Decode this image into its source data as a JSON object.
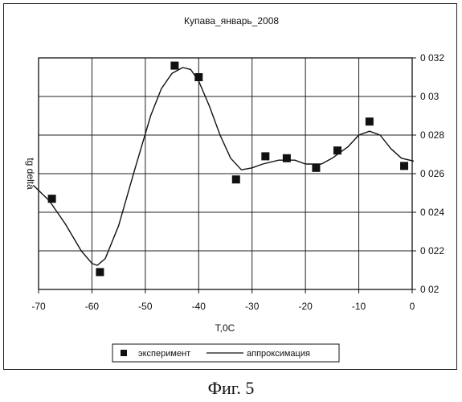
{
  "caption": "Фиг. 5",
  "chart_data": {
    "type": "scatter",
    "title": "Купава_январь_2008",
    "xlabel": "T,0C",
    "ylabel": "tg delta",
    "xlim": [
      -70,
      0
    ],
    "ylim": [
      0.02,
      0.032
    ],
    "grid": true,
    "y_axis_side": "right",
    "legend_position": "bottom",
    "x_ticks": [
      -70,
      -60,
      -50,
      -40,
      -30,
      -20,
      -10,
      0
    ],
    "x_tick_labels": [
      "-70",
      "-60",
      "-50",
      "-40",
      "-30",
      "-20",
      "-10",
      "0"
    ],
    "y_ticks": [
      0.02,
      0.022,
      0.024,
      0.026,
      0.028,
      0.03,
      0.032
    ],
    "y_tick_labels": [
      "0 02",
      "0 022",
      "0 024",
      "0 026",
      "0 028",
      "0 03",
      "0 032"
    ],
    "series": [
      {
        "name": "эксперимент",
        "marker": "square",
        "color": "#111111",
        "points": [
          {
            "x": -67.5,
            "y": 0.0247
          },
          {
            "x": -58.5,
            "y": 0.0209
          },
          {
            "x": -44.5,
            "y": 0.0316
          },
          {
            "x": -40,
            "y": 0.031
          },
          {
            "x": -33,
            "y": 0.0257
          },
          {
            "x": -27.5,
            "y": 0.0269
          },
          {
            "x": -23.5,
            "y": 0.0268
          },
          {
            "x": -18,
            "y": 0.0263
          },
          {
            "x": -14,
            "y": 0.0272
          },
          {
            "x": -8,
            "y": 0.0287
          },
          {
            "x": -1.5,
            "y": 0.0264
          }
        ]
      },
      {
        "name": "аппроксимация",
        "marker": "line",
        "color": "#111111",
        "points": [
          {
            "x": -71,
            "y": 0.0254
          },
          {
            "x": -68,
            "y": 0.0246
          },
          {
            "x": -65,
            "y": 0.0234
          },
          {
            "x": -62,
            "y": 0.022
          },
          {
            "x": -60,
            "y": 0.02135
          },
          {
            "x": -59,
            "y": 0.02125
          },
          {
            "x": -57.5,
            "y": 0.0216
          },
          {
            "x": -55,
            "y": 0.0233
          },
          {
            "x": -52,
            "y": 0.0262
          },
          {
            "x": -49,
            "y": 0.029
          },
          {
            "x": -47,
            "y": 0.0304
          },
          {
            "x": -45,
            "y": 0.0312
          },
          {
            "x": -43,
            "y": 0.0315
          },
          {
            "x": -41.5,
            "y": 0.0314
          },
          {
            "x": -40,
            "y": 0.0308
          },
          {
            "x": -38,
            "y": 0.0295
          },
          {
            "x": -36,
            "y": 0.028
          },
          {
            "x": -34,
            "y": 0.0268
          },
          {
            "x": -32,
            "y": 0.0262
          },
          {
            "x": -30,
            "y": 0.0263
          },
          {
            "x": -28,
            "y": 0.0265
          },
          {
            "x": -25,
            "y": 0.0267
          },
          {
            "x": -22,
            "y": 0.0267
          },
          {
            "x": -20,
            "y": 0.0265
          },
          {
            "x": -17,
            "y": 0.0265
          },
          {
            "x": -15,
            "y": 0.0268
          },
          {
            "x": -12,
            "y": 0.0274
          },
          {
            "x": -10,
            "y": 0.028
          },
          {
            "x": -8,
            "y": 0.0282
          },
          {
            "x": -6,
            "y": 0.028
          },
          {
            "x": -4,
            "y": 0.0273
          },
          {
            "x": -2,
            "y": 0.0268
          },
          {
            "x": 0.3,
            "y": 0.02665
          }
        ]
      }
    ]
  }
}
